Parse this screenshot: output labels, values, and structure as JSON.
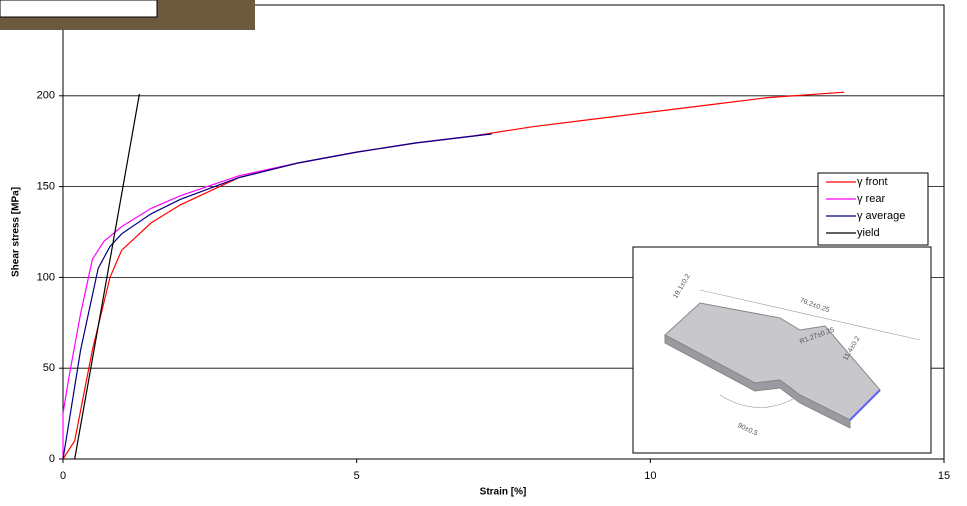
{
  "chart_data": {
    "type": "line",
    "x_label": "Strain [%]",
    "y_label": "Shear stress [MPa]",
    "xlim": [
      0,
      15
    ],
    "xticks": [
      0,
      5,
      10,
      15
    ],
    "ylim": [
      0,
      250
    ],
    "yticks": [
      0,
      50,
      100,
      150,
      200
    ],
    "grid": "y",
    "legend_position": "center right",
    "series": [
      {
        "name": "γ front",
        "color": "#ff0000",
        "x": [
          0,
          0.2,
          0.5,
          0.8,
          1,
          1.5,
          2,
          3,
          4,
          5,
          6,
          7,
          8,
          9,
          10,
          11,
          12,
          13.3
        ],
        "values": [
          0,
          10,
          60,
          100,
          115,
          130,
          140,
          155,
          163,
          169,
          174,
          178,
          183,
          187,
          191,
          195,
          199,
          202
        ]
      },
      {
        "name": "γ rear",
        "color": "#ff00ff",
        "x": [
          0,
          0,
          0.1,
          0.3,
          0.5,
          0.7,
          1,
          1.5,
          2,
          3,
          4,
          5,
          6,
          7.3
        ],
        "values": [
          0,
          25,
          45,
          80,
          110,
          120,
          128,
          138,
          145,
          156,
          163,
          169,
          174,
          179
        ]
      },
      {
        "name": "γ average",
        "color": "#000080",
        "x": [
          0,
          0.1,
          0.3,
          0.6,
          0.8,
          1,
          1.5,
          2,
          3,
          4,
          5,
          6,
          7.3
        ],
        "values": [
          0,
          20,
          60,
          105,
          117,
          124,
          135,
          143,
          155,
          163,
          169,
          174,
          179
        ]
      },
      {
        "name": "yield",
        "color": "#000000",
        "x": [
          0.2,
          1.3
        ],
        "values": [
          0,
          201
        ]
      }
    ],
    "inset_annotations": [
      "19.1±0.2",
      "76.2±0.25",
      "R1.27±0.25",
      "11.4±0.2",
      "90±0.5"
    ]
  }
}
